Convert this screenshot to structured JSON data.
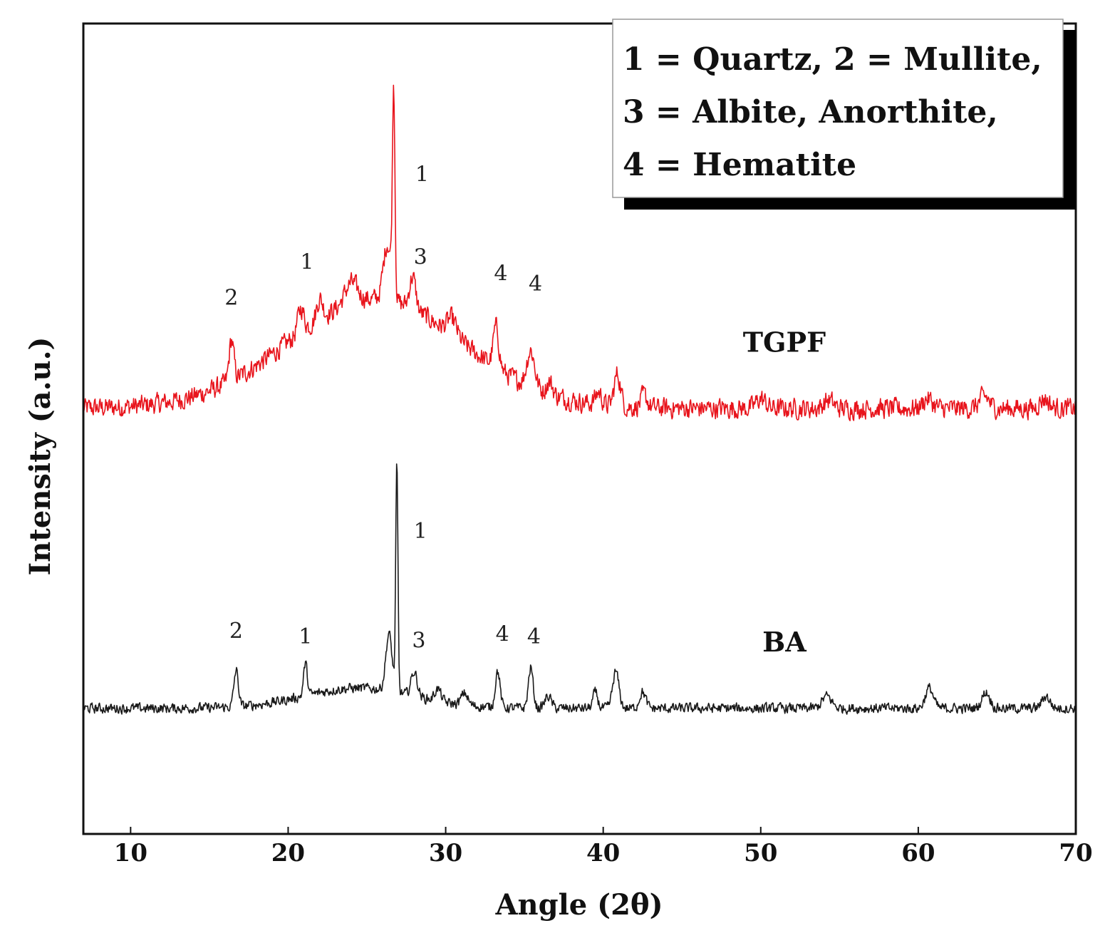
{
  "chart_data": {
    "type": "line",
    "title": "",
    "xlabel": "Angle (2θ)",
    "ylabel": "Intensity (a.u.)",
    "xlim": [
      7,
      70
    ],
    "ylim": [
      0,
      100
    ],
    "x_ticks": [
      10,
      20,
      30,
      40,
      50,
      60,
      70
    ],
    "x_tick_labels": [
      "10",
      "20",
      "30",
      "40",
      "50",
      "60",
      "70"
    ],
    "y_ticks": [],
    "grid": false,
    "legend_position": "top-right",
    "legend_lines": [
      "1 = Quartz, 2 = Mullite,",
      "3 = Albite, Anorthite,",
      "4 = Hematite"
    ],
    "series": [
      {
        "name": "TGPF",
        "color": "#e8141c",
        "baseline": 52.5,
        "noise": 1.1,
        "hump": {
          "center": 25.5,
          "width": 5.5,
          "height": 13.5
        },
        "peaks": [
          {
            "x": 16.4,
            "height": 5,
            "width": 0.15
          },
          {
            "x": 20.8,
            "height": 3,
            "width": 0.2
          },
          {
            "x": 22.0,
            "height": 2.5,
            "width": 0.2
          },
          {
            "x": 24.0,
            "height": 2.5,
            "width": 0.4
          },
          {
            "x": 26.3,
            "height": 7,
            "width": 0.25
          },
          {
            "x": 26.7,
            "height": 25,
            "width": 0.08
          },
          {
            "x": 27.9,
            "height": 4,
            "width": 0.2
          },
          {
            "x": 30.4,
            "height": 2,
            "width": 0.3
          },
          {
            "x": 33.2,
            "height": 5,
            "width": 0.18
          },
          {
            "x": 35.4,
            "height": 4.5,
            "width": 0.25
          },
          {
            "x": 36.6,
            "height": 1.5,
            "width": 0.2
          },
          {
            "x": 39.7,
            "height": 1.5,
            "width": 0.2
          },
          {
            "x": 40.9,
            "height": 4,
            "width": 0.2
          },
          {
            "x": 42.6,
            "height": 1.5,
            "width": 0.2
          },
          {
            "x": 50.0,
            "height": 1.2,
            "width": 0.3
          },
          {
            "x": 54.3,
            "height": 1,
            "width": 0.3
          },
          {
            "x": 60.6,
            "height": 1.2,
            "width": 0.3
          },
          {
            "x": 64.2,
            "height": 1.5,
            "width": 0.3
          },
          {
            "x": 68.0,
            "height": 1.2,
            "width": 0.3
          }
        ]
      },
      {
        "name": "BA",
        "color": "#1a1a1a",
        "baseline": 15.5,
        "noise": 0.55,
        "hump": {
          "center": 24.5,
          "width": 3.5,
          "height": 2.5
        },
        "peaks": [
          {
            "x": 16.7,
            "height": 4.5,
            "width": 0.14
          },
          {
            "x": 21.1,
            "height": 4,
            "width": 0.12
          },
          {
            "x": 26.4,
            "height": 7,
            "width": 0.2
          },
          {
            "x": 26.9,
            "height": 28,
            "width": 0.07
          },
          {
            "x": 28.0,
            "height": 3,
            "width": 0.2
          },
          {
            "x": 29.5,
            "height": 1.5,
            "width": 0.2
          },
          {
            "x": 31.2,
            "height": 1.5,
            "width": 0.2
          },
          {
            "x": 33.3,
            "height": 4.5,
            "width": 0.15
          },
          {
            "x": 35.4,
            "height": 5,
            "width": 0.15
          },
          {
            "x": 36.5,
            "height": 1.5,
            "width": 0.2
          },
          {
            "x": 39.5,
            "height": 2,
            "width": 0.15
          },
          {
            "x": 40.8,
            "height": 4.5,
            "width": 0.2
          },
          {
            "x": 42.5,
            "height": 2,
            "width": 0.2
          },
          {
            "x": 54.2,
            "height": 1.5,
            "width": 0.3
          },
          {
            "x": 60.7,
            "height": 2.5,
            "width": 0.25
          },
          {
            "x": 64.3,
            "height": 2,
            "width": 0.25
          },
          {
            "x": 68.1,
            "height": 1.5,
            "width": 0.25
          }
        ]
      }
    ],
    "series_labels": [
      {
        "text": "TGPF",
        "x": 51.5,
        "y": 59.5
      },
      {
        "text": "BA",
        "x": 51.5,
        "y": 22.5
      }
    ],
    "annotations": [
      {
        "series": "TGPF",
        "text": "2",
        "x": 16.4,
        "y": 65.3
      },
      {
        "series": "TGPF",
        "text": "1",
        "x": 21.2,
        "y": 69.7
      },
      {
        "series": "TGPF",
        "text": "1",
        "x": 28.5,
        "y": 80.5
      },
      {
        "series": "TGPF",
        "text": "3",
        "x": 28.4,
        "y": 70.3
      },
      {
        "series": "TGPF",
        "text": "4",
        "x": 33.5,
        "y": 68.3
      },
      {
        "series": "TGPF",
        "text": "4",
        "x": 35.7,
        "y": 67.0
      },
      {
        "series": "BA",
        "text": "2",
        "x": 16.7,
        "y": 24.2
      },
      {
        "series": "BA",
        "text": "1",
        "x": 21.1,
        "y": 23.5
      },
      {
        "series": "BA",
        "text": "1",
        "x": 28.4,
        "y": 36.5
      },
      {
        "series": "BA",
        "text": "3",
        "x": 28.3,
        "y": 23.0
      },
      {
        "series": "BA",
        "text": "4",
        "x": 33.6,
        "y": 23.8
      },
      {
        "series": "BA",
        "text": "4",
        "x": 35.6,
        "y": 23.5
      }
    ]
  }
}
